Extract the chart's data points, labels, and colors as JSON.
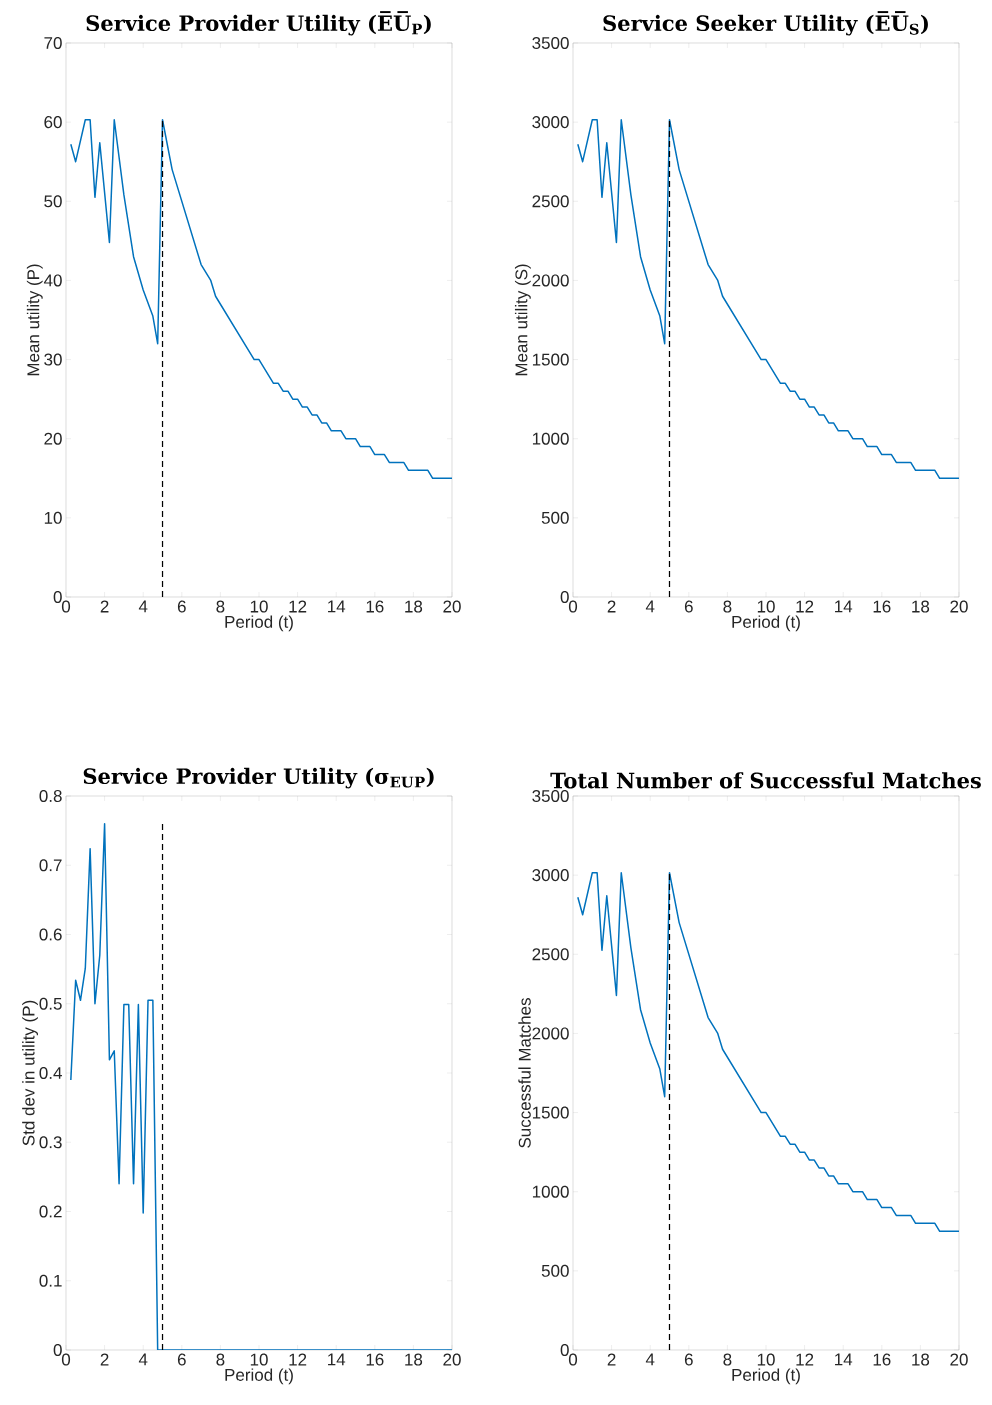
{
  "chart_data": [
    {
      "type": "line",
      "title": "Service Provider Utility (E̅U̅$_{P}$)",
      "xlabel": "Period (t)",
      "ylabel": "Mean utility (P)",
      "xlim": [
        0,
        20
      ],
      "xticks": [
        0,
        2,
        4,
        6,
        8,
        10,
        12,
        14,
        16,
        18,
        20
      ],
      "ylim": [
        0,
        70
      ],
      "yticks": [
        0,
        10,
        20,
        30,
        40,
        50,
        60,
        70
      ],
      "series": [
        {
          "color": "#0072bd",
          "line_style": "solid",
          "x": [
            0.25,
            0.5,
            1,
            1.25,
            1.5,
            1.75,
            2.25,
            2.5,
            3,
            3.5,
            4,
            4.5,
            4.75,
            5,
            5.5,
            7,
            7.5,
            7.75,
            9.75,
            10,
            10.75,
            11,
            11.25,
            11.5,
            11.75,
            12,
            12.25,
            12.5,
            12.75,
            13,
            13.25,
            13.5,
            13.75,
            14.25,
            14.5,
            15,
            15.25,
            15.75,
            16,
            16.5,
            16.75,
            17.5,
            17.75,
            18.75,
            19,
            20
          ],
          "values": [
            57.2,
            55,
            60.3,
            60.3,
            50.5,
            57.4,
            44.8,
            60.3,
            50.8,
            43,
            38.8,
            35.5,
            32,
            60.3,
            54,
            42,
            40,
            38,
            30,
            30,
            27,
            27,
            26,
            26,
            25,
            25,
            24,
            24,
            23,
            23,
            22,
            22,
            21,
            21,
            20,
            20,
            19,
            19,
            18,
            18,
            17,
            17,
            16,
            16,
            15,
            15
          ]
        },
        {
          "color": "#000000",
          "line_style": "dashed",
          "x": [
            5,
            5
          ],
          "values": [
            0,
            60.3
          ]
        }
      ]
    },
    {
      "type": "line",
      "title": "Service Seeker Utility (E̅U̅$_{S}$)",
      "xlabel": "Period (t)",
      "ylabel": "Mean utility (S)",
      "xlim": [
        0,
        20
      ],
      "xticks": [
        0,
        2,
        4,
        6,
        8,
        10,
        12,
        14,
        16,
        18,
        20
      ],
      "ylim": [
        0,
        3500
      ],
      "yticks": [
        0,
        500,
        1000,
        1500,
        2000,
        2500,
        3000,
        3500
      ],
      "series": [
        {
          "color": "#0072bd",
          "line_style": "solid",
          "x": [
            0.25,
            0.5,
            1,
            1.25,
            1.5,
            1.75,
            2.25,
            2.5,
            3,
            3.5,
            4,
            4.5,
            4.75,
            5,
            5.5,
            7,
            7.5,
            7.75,
            9.75,
            10,
            10.75,
            11,
            11.25,
            11.5,
            11.75,
            12,
            12.25,
            12.5,
            12.75,
            13,
            13.25,
            13.5,
            13.75,
            14.25,
            14.5,
            15,
            15.25,
            15.75,
            16,
            16.5,
            16.75,
            17.5,
            17.75,
            18.75,
            19,
            20
          ],
          "values": [
            2860,
            2750,
            3015,
            3015,
            2525,
            2870,
            2240,
            3015,
            2540,
            2150,
            1940,
            1775,
            1600,
            3015,
            2700,
            2100,
            2000,
            1900,
            1500,
            1500,
            1350,
            1350,
            1300,
            1300,
            1250,
            1250,
            1200,
            1200,
            1150,
            1150,
            1100,
            1100,
            1050,
            1050,
            1000,
            1000,
            950,
            950,
            900,
            900,
            850,
            850,
            800,
            800,
            750,
            750
          ]
        },
        {
          "color": "#000000",
          "line_style": "dashed",
          "x": [
            5,
            5
          ],
          "values": [
            0,
            3015
          ]
        }
      ]
    },
    {
      "type": "line",
      "title": "Service Provider Utility (σ$_{EU}$$_{P}$)",
      "xlabel": "Period (t)",
      "ylabel": "Std dev in utility (P)",
      "xlim": [
        0,
        20
      ],
      "xticks": [
        0,
        2,
        4,
        6,
        8,
        10,
        12,
        14,
        16,
        18,
        20
      ],
      "ylim": [
        0,
        0.8
      ],
      "yticks": [
        0,
        0.1,
        0.2,
        0.3,
        0.4,
        0.5,
        0.6,
        0.7,
        0.8
      ],
      "series": [
        {
          "color": "#0072bd",
          "line_style": "solid",
          "x": [
            0.25,
            0.5,
            0.75,
            1,
            1.25,
            1.5,
            1.75,
            2,
            2.25,
            2.5,
            2.75,
            3,
            3.25,
            3.5,
            3.75,
            4,
            4.25,
            4.5,
            4.75,
            20
          ],
          "values": [
            0.39,
            0.534,
            0.505,
            0.551,
            0.724,
            0.5,
            0.57,
            0.76,
            0.419,
            0.432,
            0.24,
            0.499,
            0.499,
            0.24,
            0.499,
            0.198,
            0.505,
            0.505,
            0,
            0
          ]
        },
        {
          "color": "#000000",
          "line_style": "dashed",
          "x": [
            5,
            5
          ],
          "values": [
            0,
            0.76
          ]
        }
      ]
    },
    {
      "type": "line",
      "title": "Total Number of Successful Matches",
      "xlabel": "Period (t)",
      "ylabel": "Successful Matches",
      "xlim": [
        0,
        20
      ],
      "xticks": [
        0,
        2,
        4,
        6,
        8,
        10,
        12,
        14,
        16,
        18,
        20
      ],
      "ylim": [
        0,
        3500
      ],
      "yticks": [
        0,
        500,
        1000,
        1500,
        2000,
        2500,
        3000,
        3500
      ],
      "series": [
        {
          "color": "#0072bd",
          "line_style": "solid",
          "x": [
            0.25,
            0.5,
            1,
            1.25,
            1.5,
            1.75,
            2.25,
            2.5,
            3,
            3.5,
            4,
            4.5,
            4.75,
            5,
            5.5,
            7,
            7.5,
            7.75,
            9.75,
            10,
            10.75,
            11,
            11.25,
            11.5,
            11.75,
            12,
            12.25,
            12.5,
            12.75,
            13,
            13.25,
            13.5,
            13.75,
            14.25,
            14.5,
            15,
            15.25,
            15.75,
            16,
            16.5,
            16.75,
            17.5,
            17.75,
            18.75,
            19,
            20
          ],
          "values": [
            2860,
            2750,
            3015,
            3015,
            2525,
            2870,
            2240,
            3015,
            2540,
            2150,
            1940,
            1775,
            1600,
            3015,
            2700,
            2100,
            2000,
            1900,
            1500,
            1500,
            1350,
            1350,
            1300,
            1300,
            1250,
            1250,
            1200,
            1200,
            1150,
            1150,
            1100,
            1100,
            1050,
            1050,
            1000,
            1000,
            950,
            950,
            900,
            900,
            850,
            850,
            800,
            800,
            750,
            750
          ]
        },
        {
          "color": "#000000",
          "line_style": "dashed",
          "x": [
            5,
            5
          ],
          "values": [
            0,
            3015
          ]
        }
      ]
    }
  ]
}
